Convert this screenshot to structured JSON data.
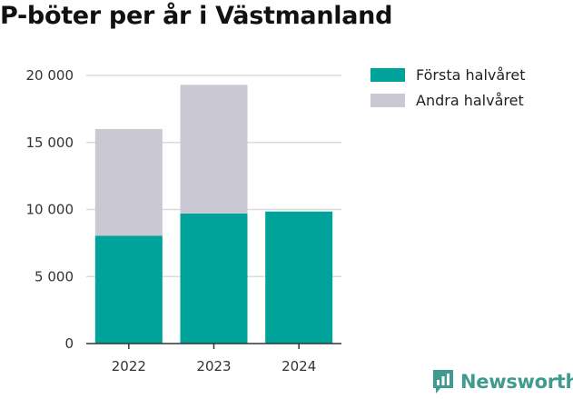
{
  "title": "P-böter per år i Västmanland",
  "brand": {
    "name": "Newsworthy",
    "icon": "newsworthy-logo-icon",
    "color": "#3f9b8f"
  },
  "chart_data": {
    "type": "bar",
    "stacked": true,
    "categories": [
      "2022",
      "2023",
      "2024"
    ],
    "series": [
      {
        "name": "Första halvåret",
        "color": "#00a39a",
        "values": [
          8050,
          9700,
          9850
        ]
      },
      {
        "name": "Andra halvåret",
        "color": "#c9c8d3",
        "values": [
          7950,
          9600,
          0
        ]
      }
    ],
    "ylim": [
      0,
      20000
    ],
    "yticks": [
      0,
      5000,
      10000,
      15000,
      20000
    ],
    "ytick_labels": [
      "0",
      "5 000",
      "10 000",
      "15 000",
      "20 000"
    ],
    "grid": true,
    "legend_position": "top-right"
  }
}
